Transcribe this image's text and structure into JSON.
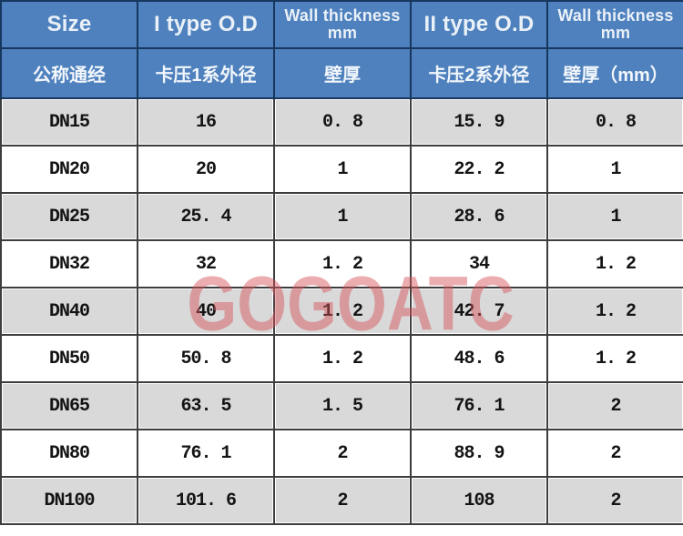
{
  "colors": {
    "header_bg": "#4e81bd",
    "header_border": "#17375e",
    "header_text": "#e9f0f8",
    "row_alt_bg": "#d9d9d9",
    "row_bg": "#ffffff",
    "grid_border": "#3d3d3d",
    "data_text": "#141414",
    "watermark_color": "#d6545a"
  },
  "watermark": {
    "text": "GOGOATC"
  },
  "chart_data": {
    "type": "table",
    "title": "",
    "columns_en": [
      "Size",
      "I type O.D",
      "Wall thickness\nmm",
      "II type O.D",
      "Wall thickness\nmm"
    ],
    "columns_cn": [
      "公称通经",
      "卡压1系外径",
      "壁厚",
      "卡压2系外径",
      "壁厚（mm）"
    ],
    "rows": [
      [
        "DN15",
        "16",
        "0. 8",
        "15. 9",
        "0. 8"
      ],
      [
        "DN20",
        "20",
        "1",
        "22. 2",
        "1"
      ],
      [
        "DN25",
        "25. 4",
        "1",
        "28. 6",
        "1"
      ],
      [
        "DN32",
        "32",
        "1. 2",
        "34",
        "1. 2"
      ],
      [
        "DN40",
        "40",
        "1. 2",
        "42. 7",
        "1. 2"
      ],
      [
        "DN50",
        "50. 8",
        "1. 2",
        "48. 6",
        "1. 2"
      ],
      [
        "DN65",
        "63. 5",
        "1. 5",
        "76. 1",
        "2"
      ],
      [
        "DN80",
        "76. 1",
        "2",
        "88. 9",
        "2"
      ],
      [
        "DN100",
        "101. 6",
        "2",
        "108",
        "2"
      ]
    ]
  }
}
